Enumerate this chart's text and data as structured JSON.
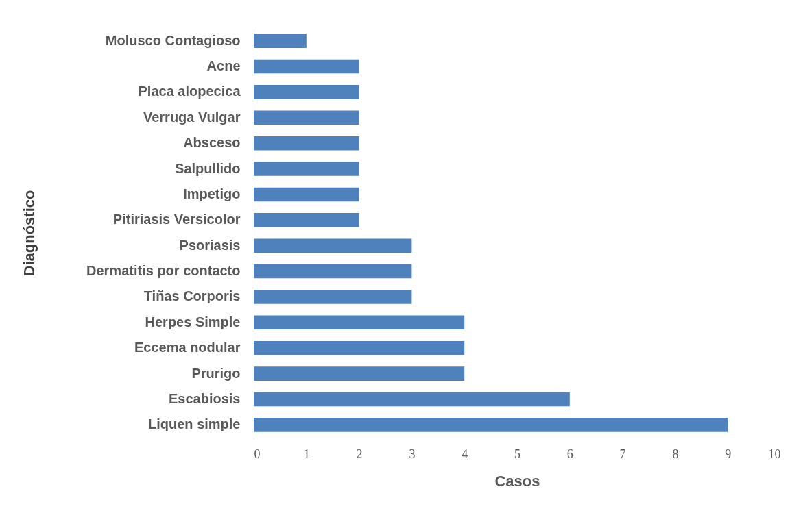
{
  "chart_data": {
    "type": "bar",
    "orientation": "horizontal",
    "xlabel": "Casos",
    "ylabel": "Diagnóstico",
    "categories": [
      "Molusco Contagioso",
      "Acne",
      "Placa alopecica",
      "Verruga Vulgar",
      "Absceso",
      "Salpullido",
      "Impetigo",
      "Pitiriasis Versicolor",
      "Psoriasis",
      "Dermatitis por contacto",
      "Tiñas Corporis",
      "Herpes Simple",
      "Eccema nodular",
      "Prurigo",
      "Escabiosis",
      "Liquen simple"
    ],
    "values": [
      1,
      2,
      2,
      2,
      2,
      2,
      2,
      2,
      3,
      3,
      3,
      4,
      4,
      4,
      6,
      9
    ],
    "color": "#4f81bd",
    "xlim": [
      0,
      10
    ],
    "xticks": [
      0,
      1,
      2,
      3,
      4,
      5,
      6,
      7,
      8,
      9,
      10
    ],
    "grid": false
  }
}
